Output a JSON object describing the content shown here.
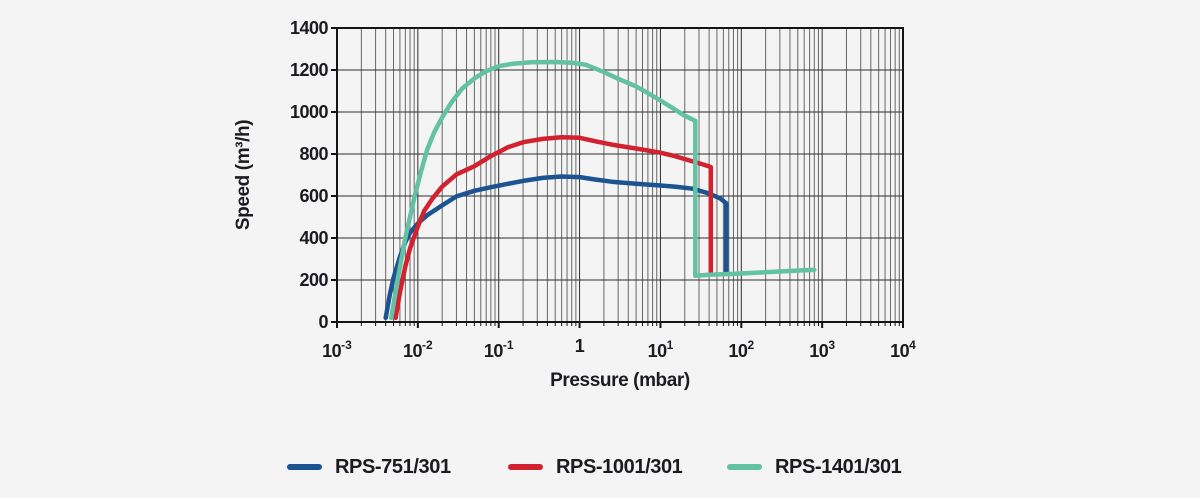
{
  "chart_data": {
    "type": "line",
    "xlabel": "Pressure (mbar)",
    "ylabel": "Speed (m³/h)",
    "x_scale": "log",
    "xlim": [
      0.001,
      10000
    ],
    "ylim": [
      0,
      1400
    ],
    "grid": "on",
    "legend_position": "bottom",
    "y_ticks": [
      0,
      200,
      400,
      600,
      800,
      1000,
      1200,
      1400
    ],
    "x_ticks": [
      {
        "b": "10",
        "e": "-3"
      },
      {
        "b": "10",
        "e": "-2"
      },
      {
        "b": "10",
        "e": "-1"
      },
      {
        "b": "1",
        "e": ""
      },
      {
        "b": "10",
        "e": "1"
      },
      {
        "b": "10",
        "e": "2"
      },
      {
        "b": "10",
        "e": "3"
      },
      {
        "b": "10",
        "e": "4"
      }
    ],
    "series": [
      {
        "name": "RPS-751/301",
        "color": "#1c5493",
        "points": [
          [
            0.004,
            20
          ],
          [
            0.0045,
            130
          ],
          [
            0.005,
            210
          ],
          [
            0.006,
            310
          ],
          [
            0.007,
            380
          ],
          [
            0.008,
            425
          ],
          [
            0.01,
            470
          ],
          [
            0.013,
            508
          ],
          [
            0.02,
            555
          ],
          [
            0.03,
            598
          ],
          [
            0.05,
            625
          ],
          [
            0.08,
            642
          ],
          [
            0.13,
            658
          ],
          [
            0.2,
            672
          ],
          [
            0.35,
            686
          ],
          [
            0.6,
            693
          ],
          [
            1,
            690
          ],
          [
            1.6,
            678
          ],
          [
            2.5,
            668
          ],
          [
            5,
            658
          ],
          [
            10,
            650
          ],
          [
            15,
            645
          ],
          [
            25,
            635
          ],
          [
            40,
            612
          ],
          [
            55,
            588
          ],
          [
            65,
            565
          ],
          [
            65,
            237
          ]
        ]
      },
      {
        "name": "RPS-1001/301",
        "color": "#d2212f",
        "points": [
          [
            0.0053,
            20
          ],
          [
            0.006,
            140
          ],
          [
            0.007,
            265
          ],
          [
            0.008,
            350
          ],
          [
            0.01,
            455
          ],
          [
            0.012,
            530
          ],
          [
            0.015,
            585
          ],
          [
            0.02,
            645
          ],
          [
            0.03,
            703
          ],
          [
            0.05,
            742
          ],
          [
            0.08,
            790
          ],
          [
            0.13,
            832
          ],
          [
            0.2,
            856
          ],
          [
            0.35,
            872
          ],
          [
            0.6,
            880
          ],
          [
            1,
            877
          ],
          [
            1.6,
            860
          ],
          [
            2.5,
            845
          ],
          [
            5,
            826
          ],
          [
            10,
            806
          ],
          [
            15,
            790
          ],
          [
            25,
            765
          ],
          [
            35,
            748
          ],
          [
            42,
            738
          ],
          [
            42,
            235
          ]
        ]
      },
      {
        "name": "RPS-1401/301",
        "color": "#63c2a3",
        "points": [
          [
            0.0047,
            20
          ],
          [
            0.0055,
            180
          ],
          [
            0.006,
            260
          ],
          [
            0.007,
            400
          ],
          [
            0.008,
            500
          ],
          [
            0.009,
            590
          ],
          [
            0.011,
            720
          ],
          [
            0.013,
            820
          ],
          [
            0.016,
            905
          ],
          [
            0.02,
            975
          ],
          [
            0.026,
            1045
          ],
          [
            0.035,
            1110
          ],
          [
            0.05,
            1160
          ],
          [
            0.07,
            1195
          ],
          [
            0.1,
            1218
          ],
          [
            0.15,
            1230
          ],
          [
            0.25,
            1237
          ],
          [
            0.5,
            1238
          ],
          [
            0.8,
            1235
          ],
          [
            1.2,
            1225
          ],
          [
            2,
            1190
          ],
          [
            3,
            1158
          ],
          [
            5,
            1122
          ],
          [
            7,
            1090
          ],
          [
            10,
            1055
          ],
          [
            14,
            1020
          ],
          [
            20,
            982
          ],
          [
            27,
            958
          ],
          [
            27,
            220
          ],
          [
            40,
            225
          ],
          [
            80,
            229
          ],
          [
            160,
            235
          ],
          [
            320,
            241
          ],
          [
            600,
            246
          ],
          [
            800,
            248
          ]
        ]
      }
    ],
    "plot_colors": {
      "background": "#f3f4f3",
      "grid_major": "#2e2e2e",
      "grid_minor": "#686868",
      "axis_border": "#141414",
      "text": "#1b1b20"
    }
  }
}
